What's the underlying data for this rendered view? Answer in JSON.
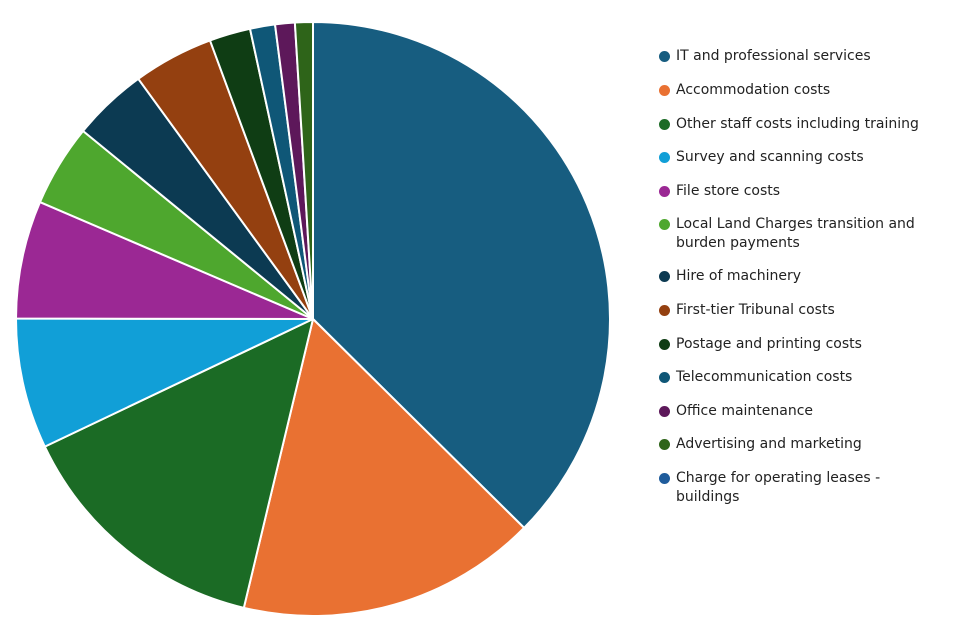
{
  "chart_data": {
    "type": "pie",
    "title": "",
    "start_angle_deg": 0,
    "direction": "clockwise",
    "slices": [
      {
        "label": "IT and professional services",
        "value": 38.5,
        "color": "#175d80"
      },
      {
        "label": "Accommodation costs",
        "value": 16.8,
        "color": "#e97132"
      },
      {
        "label": "Other staff costs including training",
        "value": 14.6,
        "color": "#1b6b25"
      },
      {
        "label": "Survey and scanning costs",
        "value": 7.3,
        "color": "#119fd7"
      },
      {
        "label": "File store costs",
        "value": 6.6,
        "color": "#9b2894"
      },
      {
        "label": "Local Land Charges transition and burden payments",
        "value": 4.6,
        "color": "#4ea72e"
      },
      {
        "label": "Hire of machinery",
        "value": 4.2,
        "color": "#0c3a52"
      },
      {
        "label": "First-tier Tribunal costs",
        "value": 4.5,
        "color": "#944010"
      },
      {
        "label": "Postage and printing costs",
        "value": 2.3,
        "color": "#0f3d14"
      },
      {
        "label": "Telecommunication costs",
        "value": 1.4,
        "color": "#0f5777"
      },
      {
        "label": "Office maintenance",
        "value": 1.1,
        "color": "#5d185a"
      },
      {
        "label": "Advertising and marketing",
        "value": 1.0,
        "color": "#2e6419"
      },
      {
        "label": "Charge for operating leases - buildings",
        "value": 0.0,
        "color": "#1f5c9c"
      }
    ],
    "legend_position": "right"
  }
}
